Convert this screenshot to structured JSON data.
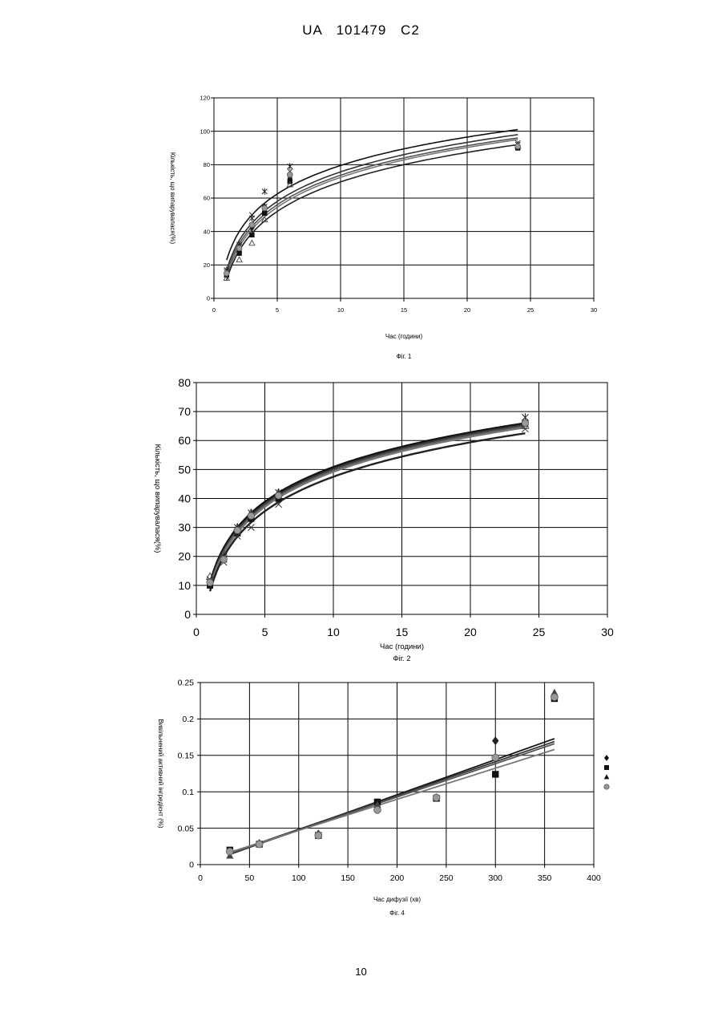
{
  "page": {
    "header": "UA 101479 C2",
    "page_number": "10"
  },
  "chart_data": [
    {
      "id": "fig1",
      "type": "scatter",
      "caption": "Фіг. 1",
      "xlabel": "Час (години)",
      "ylabel": "Кількість, що випарувалася(%)",
      "xlim": [
        0,
        30
      ],
      "ylim": [
        0,
        120
      ],
      "xticks": [
        "0",
        "5",
        "10",
        "15",
        "20",
        "25",
        "30"
      ],
      "yticks": [
        "0",
        "20",
        "40",
        "60",
        "80",
        "100",
        "120"
      ],
      "grid": true,
      "legend": "none",
      "series": [
        {
          "marker": "diamond",
          "x": [
            1,
            2,
            3,
            4,
            6,
            24
          ],
          "y": [
            15,
            29,
            42,
            55,
            72,
            91
          ]
        },
        {
          "marker": "square",
          "x": [
            1,
            2,
            3,
            4,
            6,
            24
          ],
          "y": [
            14,
            27,
            38,
            51,
            70,
            90
          ]
        },
        {
          "marker": "triangle-open",
          "x": [
            1,
            2,
            3,
            4,
            6,
            24
          ],
          "y": [
            12,
            23,
            33,
            47,
            68,
            91
          ]
        },
        {
          "marker": "x",
          "x": [
            1,
            2,
            3,
            4,
            6,
            24
          ],
          "y": [
            16,
            31,
            50,
            55,
            76,
            93
          ]
        },
        {
          "marker": "asterisk",
          "x": [
            1,
            2,
            3,
            4,
            6,
            24
          ],
          "y": [
            17,
            32,
            48,
            64,
            79,
            92
          ]
        },
        {
          "marker": "circle",
          "x": [
            1,
            2,
            3,
            4,
            6,
            24
          ],
          "y": [
            15,
            30,
            44,
            54,
            74,
            91
          ]
        }
      ],
      "trendlines": [
        {
          "type": "log",
          "y_at_1": 23,
          "y_at_24": 101
        },
        {
          "type": "log",
          "y_at_1": 17,
          "y_at_24": 98
        },
        {
          "type": "log",
          "y_at_1": 15,
          "y_at_24": 96
        },
        {
          "type": "log",
          "y_at_1": 13,
          "y_at_24": 95
        },
        {
          "type": "log",
          "y_at_1": 11,
          "y_at_24": 92
        }
      ]
    },
    {
      "id": "fig2",
      "type": "scatter",
      "caption": "Фіг. 2",
      "xlabel": "Час (години)",
      "ylabel": "Кількість, що випарувалася(%)",
      "xlim": [
        0,
        30
      ],
      "ylim": [
        0,
        80
      ],
      "xticks": [
        "0",
        "5",
        "10",
        "15",
        "20",
        "25",
        "30"
      ],
      "yticks": [
        "0",
        "10",
        "20",
        "30",
        "40",
        "50",
        "60",
        "70",
        "80"
      ],
      "grid": true,
      "legend": "none",
      "series": [
        {
          "marker": "diamond",
          "x": [
            1,
            2,
            3,
            4,
            6,
            24
          ],
          "y": [
            11,
            19,
            29,
            33,
            40,
            66
          ]
        },
        {
          "marker": "square",
          "x": [
            1,
            2,
            3,
            4,
            6,
            24
          ],
          "y": [
            10,
            19,
            28,
            33,
            40,
            66
          ]
        },
        {
          "marker": "triangle-open",
          "x": [
            1,
            2,
            3,
            4,
            6,
            24
          ],
          "y": [
            13,
            21,
            30,
            35,
            42,
            65
          ]
        },
        {
          "marker": "x",
          "x": [
            1,
            2,
            3,
            4,
            6,
            24
          ],
          "y": [
            12,
            18,
            27,
            30,
            38,
            64
          ]
        },
        {
          "marker": "asterisk",
          "x": [
            1,
            2,
            3,
            4,
            6,
            24
          ],
          "y": [
            11,
            20,
            30,
            35,
            42,
            68
          ]
        },
        {
          "marker": "circle",
          "x": [
            1,
            2,
            3,
            4,
            6,
            24
          ],
          "y": [
            11,
            19,
            29,
            34,
            41,
            66
          ]
        }
      ],
      "trendlines": [
        {
          "type": "log",
          "y_at_1": 11,
          "y_at_24": 66
        },
        {
          "type": "log",
          "y_at_1": 10,
          "y_at_24": 65.5
        },
        {
          "type": "log",
          "y_at_1": 9.5,
          "y_at_24": 65
        },
        {
          "type": "log",
          "y_at_1": 9,
          "y_at_24": 64.5
        },
        {
          "type": "log",
          "y_at_1": 8,
          "y_at_24": 62.5
        }
      ]
    },
    {
      "id": "fig4",
      "type": "scatter",
      "caption": "Фіг. 4",
      "xlabel": "Час дифузії (хв)",
      "ylabel": "Вивільнений активний інгредієнт  (%)",
      "xlim": [
        0,
        400
      ],
      "ylim": [
        0,
        0.25
      ],
      "xticks": [
        "0",
        "50",
        "100",
        "150",
        "200",
        "250",
        "300",
        "350",
        "400"
      ],
      "yticks": [
        "0",
        "0.05",
        "0.1",
        "0.15",
        "0.2",
        "0.25"
      ],
      "grid": true,
      "legend": "right",
      "legend_markers": [
        "diamond",
        "square",
        "triangle",
        "circle"
      ],
      "series": [
        {
          "marker": "diamond",
          "x": [
            30,
            60,
            120,
            180,
            240,
            300,
            360
          ],
          "y": [
            0.017,
            0.029,
            0.042,
            0.079,
            0.092,
            0.17,
            0.232
          ]
        },
        {
          "marker": "square",
          "x": [
            30,
            60,
            120,
            180,
            240,
            300,
            360
          ],
          "y": [
            0.02,
            0.028,
            0.04,
            0.086,
            0.091,
            0.124,
            0.228
          ]
        },
        {
          "marker": "triangle",
          "x": [
            30,
            60,
            120,
            180,
            240,
            300,
            360
          ],
          "y": [
            0.012,
            0.028,
            0.042,
            0.082,
            0.092,
            0.148,
            0.236
          ]
        },
        {
          "marker": "circle",
          "x": [
            30,
            60,
            120,
            180,
            240,
            300,
            360
          ],
          "y": [
            0.018,
            0.028,
            0.04,
            0.075,
            0.092,
            0.147,
            0.23
          ]
        }
      ],
      "trendlines": [
        {
          "type": "linear",
          "x0": 30,
          "y0": 0.014,
          "x1": 360,
          "y1": 0.173
        },
        {
          "type": "linear",
          "x0": 30,
          "y0": 0.016,
          "x1": 360,
          "y1": 0.169
        },
        {
          "type": "linear",
          "x0": 30,
          "y0": 0.015,
          "x1": 360,
          "y1": 0.166
        },
        {
          "type": "linear",
          "x0": 30,
          "y0": 0.017,
          "x1": 360,
          "y1": 0.158
        }
      ]
    }
  ]
}
